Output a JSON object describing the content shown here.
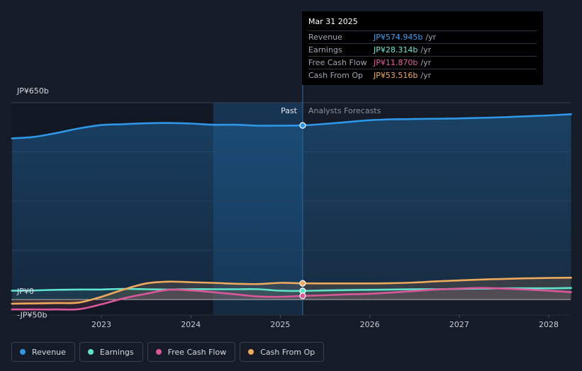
{
  "tooltip": {
    "date": "Mar 31 2025",
    "rows": [
      {
        "label": "Revenue",
        "value": "JP¥574.945b",
        "unit": "/yr",
        "color": "#3aa0f0"
      },
      {
        "label": "Earnings",
        "value": "JP¥28.314b",
        "unit": "/yr",
        "color": "#6ee8d4"
      },
      {
        "label": "Free Cash Flow",
        "value": "JP¥11.870b",
        "unit": "/yr",
        "color": "#e05e9e"
      },
      {
        "label": "Cash From Op",
        "value": "JP¥53.516b",
        "unit": "/yr",
        "color": "#f0ad5a"
      }
    ]
  },
  "labels": {
    "past": "Past",
    "forecast": "Analysts Forecasts"
  },
  "legend": [
    {
      "label": "Revenue",
      "color": "#2f97e8"
    },
    {
      "label": "Earnings",
      "color": "#5fe3cc"
    },
    {
      "label": "Free Cash Flow",
      "color": "#d9579b"
    },
    {
      "label": "Cash From Op",
      "color": "#eeaa5c"
    }
  ],
  "chart_data": {
    "type": "line",
    "y_tick_labels": [
      "JP¥650b",
      "JP¥0",
      "-JP¥50b"
    ],
    "ylim": [
      -50,
      650
    ],
    "x_tick_labels": [
      "2023",
      "2024",
      "2025",
      "2026",
      "2027",
      "2028"
    ],
    "x_tick_values": [
      2023,
      2024,
      2025,
      2026,
      2027,
      2028
    ],
    "xlim": [
      2021.75,
      2028.25
    ],
    "past_forecast_boundary": 2025.25,
    "highlight_start": 2024.25,
    "grid": true,
    "series": [
      {
        "name": "Revenue",
        "color": "#2f97e8",
        "x": [
          2022.0,
          2022.25,
          2022.5,
          2022.75,
          2023.0,
          2023.25,
          2023.5,
          2023.75,
          2024.0,
          2024.25,
          2024.5,
          2024.75,
          2025.0,
          2025.25,
          2025.5,
          2025.75,
          2026.0,
          2026.25,
          2026.5,
          2026.75,
          2027.0,
          2027.25,
          2027.5,
          2027.75,
          2028.0,
          2028.25
        ],
        "values": [
          532,
          537,
          550,
          565,
          576,
          579,
          582,
          583,
          581,
          577,
          577,
          574,
          574,
          575,
          580,
          586,
          592,
          595,
          596,
          597,
          598,
          600,
          602,
          605,
          608,
          612
        ]
      },
      {
        "name": "Earnings",
        "color": "#5fe3cc",
        "x": [
          2022.0,
          2022.25,
          2022.5,
          2022.75,
          2023.0,
          2023.25,
          2023.5,
          2023.75,
          2024.0,
          2024.25,
          2024.5,
          2024.75,
          2025.0,
          2025.25,
          2025.5,
          2025.75,
          2026.0,
          2026.25,
          2026.5,
          2026.75,
          2027.0,
          2027.25,
          2027.5,
          2027.75,
          2028.0,
          2028.25
        ],
        "values": [
          29,
          30,
          32,
          33,
          33,
          35,
          34,
          33,
          34,
          34,
          34,
          34,
          29,
          28.3,
          30,
          31,
          32,
          33,
          34,
          34,
          35,
          36,
          37,
          37,
          37,
          38
        ]
      },
      {
        "name": "Free Cash Flow",
        "color": "#d9579b",
        "x": [
          2022.0,
          2022.25,
          2022.5,
          2022.75,
          2023.0,
          2023.25,
          2023.5,
          2023.75,
          2024.0,
          2024.25,
          2024.5,
          2024.75,
          2025.0,
          2025.25,
          2025.5,
          2025.75,
          2026.0,
          2026.25,
          2026.5,
          2026.75,
          2027.0,
          2027.25,
          2027.5,
          2027.75,
          2028.0,
          2028.25
        ],
        "values": [
          -33,
          -33,
          -33,
          -32,
          -16,
          4,
          19,
          32,
          30,
          24,
          17,
          10,
          9,
          11.9,
          14,
          17,
          19,
          23,
          28,
          33,
          36,
          38,
          36,
          33,
          29,
          24
        ]
      },
      {
        "name": "Cash From Op",
        "color": "#eeaa5c",
        "x": [
          2022.0,
          2022.25,
          2022.5,
          2022.75,
          2023.0,
          2023.25,
          2023.5,
          2023.75,
          2024.0,
          2024.25,
          2024.5,
          2024.75,
          2025.0,
          2025.25,
          2025.5,
          2025.75,
          2026.0,
          2026.25,
          2026.5,
          2026.75,
          2027.0,
          2027.25,
          2027.5,
          2027.75,
          2028.0,
          2028.25
        ],
        "values": [
          -14,
          -13,
          -12,
          -10,
          9,
          33,
          53,
          59,
          57,
          55,
          52,
          51,
          55,
          53.5,
          53,
          53,
          53,
          54,
          56,
          60,
          63,
          66,
          68,
          70,
          71,
          72
        ]
      }
    ],
    "markers": [
      {
        "series": "Revenue",
        "x": 2025.25,
        "y": 574.945
      },
      {
        "series": "Earnings",
        "x": 2025.25,
        "y": 28.314
      },
      {
        "series": "Free Cash Flow",
        "x": 2025.25,
        "y": 11.87
      },
      {
        "series": "Cash From Op",
        "x": 2025.25,
        "y": 53.516
      }
    ]
  }
}
